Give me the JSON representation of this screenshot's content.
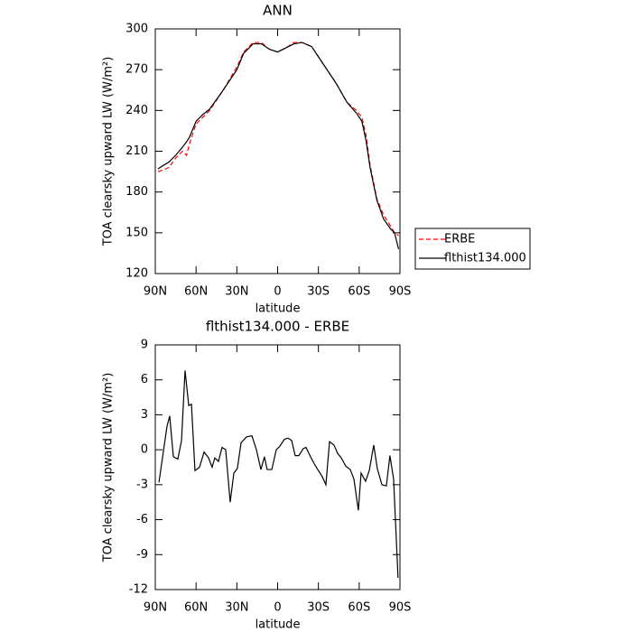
{
  "chart_data": [
    {
      "type": "line",
      "title": "ANN",
      "xlabel": "latitude",
      "ylabel": "TOA clearsky upward LW (W/m²)",
      "x": [
        88,
        85,
        80,
        75,
        70,
        67,
        65,
        60,
        55,
        50,
        40,
        30,
        25,
        18,
        12,
        6,
        0,
        -6,
        -12,
        -18,
        -25,
        -33,
        -43,
        -51,
        -58,
        -62,
        -65,
        -68,
        -73,
        -78,
        -83,
        -86,
        -89
      ],
      "series": [
        {
          "name": "ERBE",
          "color": "#ff0000",
          "linestyle": "dashed",
          "values": [
            195,
            196,
            198,
            205,
            210,
            207,
            215,
            230,
            235,
            240,
            255,
            272,
            283,
            290,
            290,
            285,
            283,
            286,
            290,
            290,
            287,
            275,
            260,
            246,
            240,
            235,
            222,
            200,
            175,
            163,
            155,
            150,
            148
          ]
        },
        {
          "name": "flthist134.000",
          "color": "#000000",
          "linestyle": "solid",
          "values": [
            197,
            199,
            202,
            207,
            213,
            217,
            220,
            232,
            237,
            241,
            255,
            270,
            282,
            289,
            289,
            285,
            283,
            286,
            289,
            290,
            287,
            275,
            260,
            246,
            238,
            232,
            218,
            198,
            174,
            160,
            153,
            150,
            138
          ]
        }
      ],
      "xlim": [
        90,
        -90
      ],
      "xticks": [
        {
          "value": 90,
          "label": "90N"
        },
        {
          "value": 60,
          "label": "60N"
        },
        {
          "value": 30,
          "label": "30N"
        },
        0,
        {
          "value": -30,
          "label": "30S"
        },
        {
          "value": -60,
          "label": "60S"
        },
        {
          "value": -90,
          "label": "90S"
        }
      ],
      "ylim": [
        120,
        300
      ],
      "yticks": [
        120,
        150,
        180,
        210,
        240,
        270,
        300
      ],
      "legend": "outside-right"
    },
    {
      "type": "line",
      "title": "flthist134.000 - ERBE",
      "xlabel": "latitude",
      "ylabel": "TOA clearsky upward LW (W/m²)",
      "x": [
        87.3,
        81.4,
        79.4,
        76.7,
        73.4,
        70.7,
        68.1,
        65.4,
        63.4,
        60.8,
        57.5,
        54.1,
        50.8,
        48.2,
        46.2,
        43.5,
        40.9,
        38.2,
        34.9,
        32.2,
        29.6,
        26.9,
        22.9,
        18.9,
        15.6,
        12.3,
        9.7,
        7.7,
        4.3,
        1,
        -1.6,
        -5,
        -7.6,
        -10.3,
        -12.9,
        -15.6,
        -18.9,
        -20.9,
        -24.2,
        -26.9,
        -29.5,
        -32.8,
        -35.5,
        -38.2,
        -41.5,
        -44.1,
        -46.8,
        -50.1,
        -53.4,
        -56.1,
        -59.4,
        -61.4,
        -64.7,
        -67.4,
        -70.7,
        -73.3,
        -76.7,
        -80,
        -82.6,
        -85.3,
        -88.6
      ],
      "series": [
        {
          "color": "#000000",
          "linestyle": "solid",
          "values": [
            -2.8,
            2,
            2.9,
            -0.6,
            -0.8,
            0.8,
            6.8,
            3.8,
            3.9,
            -1.8,
            -1.5,
            -0.2,
            -0.7,
            -1.5,
            -0.7,
            -1,
            0.2,
            0,
            -4.5,
            -2,
            -1.6,
            0.6,
            1.1,
            1.2,
            0,
            -1.7,
            -0.6,
            -1.7,
            -1.7,
            0,
            0.3,
            0.9,
            1,
            0.8,
            -0.5,
            -0.5,
            0.1,
            0.2,
            -0.6,
            -1.2,
            -1.7,
            -2.3,
            -3,
            0.7,
            0.4,
            -0.3,
            -0.7,
            -1.4,
            -1.7,
            -2.5,
            -5.2,
            -2,
            -2.7,
            -1.8,
            0.4,
            -1.6,
            -3,
            -3.1,
            -0.5,
            -2.5,
            -11
          ]
        }
      ],
      "xlim": [
        90,
        -90
      ],
      "xticks": [
        {
          "value": 90,
          "label": "90N"
        },
        {
          "value": 60,
          "label": "60N"
        },
        {
          "value": 30,
          "label": "30N"
        },
        0,
        {
          "value": -30,
          "label": "30S"
        },
        {
          "value": -60,
          "label": "60S"
        },
        {
          "value": -90,
          "label": "90S"
        }
      ],
      "ylim": [
        -12,
        9
      ],
      "yticks": [
        -12,
        -9,
        -6,
        -3,
        0,
        3,
        6,
        9
      ]
    }
  ]
}
